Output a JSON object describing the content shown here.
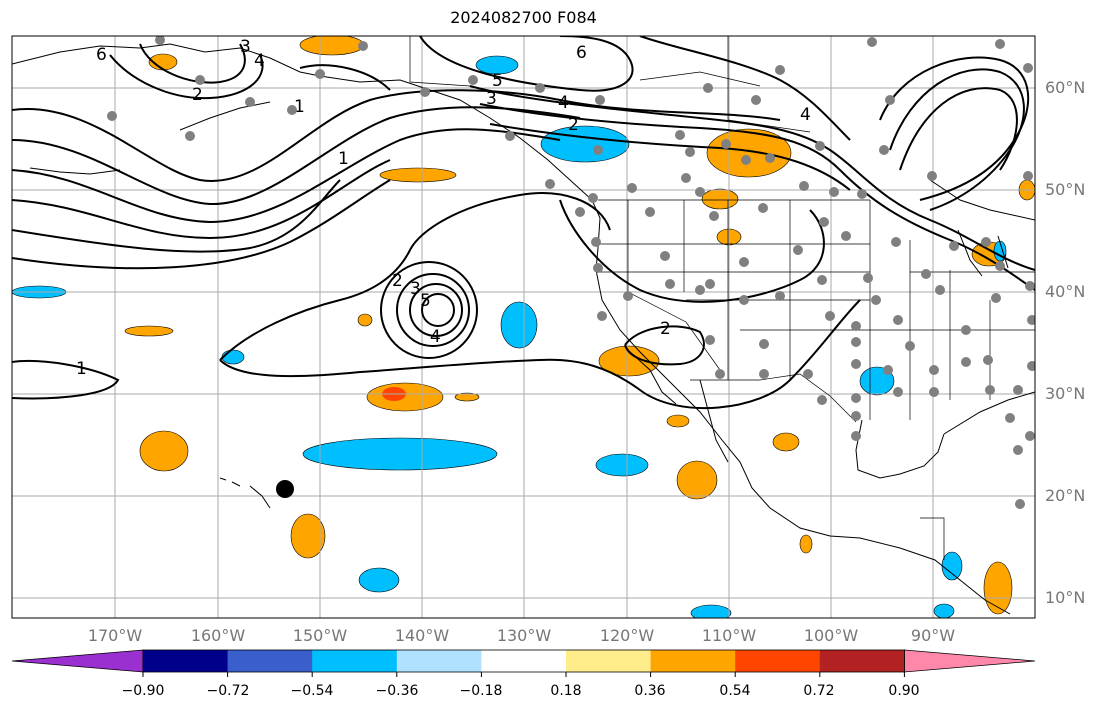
{
  "title": "2024082700 F084",
  "lat_labels": [
    "60°N",
    "50°N",
    "40°N",
    "30°N",
    "20°N",
    "10°N"
  ],
  "lon_labels": [
    "170°W",
    "160°W",
    "150°W",
    "140°W",
    "130°W",
    "120°W",
    "110°W",
    "100°W",
    "90°W"
  ],
  "colorbar": {
    "ticks": [
      "−0.90",
      "−0.72",
      "−0.54",
      "−0.36",
      "−0.18",
      "0.18",
      "0.36",
      "0.54",
      "0.72",
      "0.90"
    ],
    "colors": [
      "#9b30d0",
      "#00008b",
      "#3a5fcd",
      "#00bfff",
      "#b0e2ff",
      "#ffffff",
      "#ffec8b",
      "#ffa500",
      "#ff4500",
      "#b22222",
      "#ff88aa"
    ]
  },
  "contour_labels": [
    "6",
    "4",
    "3",
    "2",
    "1",
    "5",
    "4",
    "3",
    "2",
    "1",
    "6",
    "4",
    "2",
    "3",
    "4",
    "5",
    "2",
    "1"
  ],
  "colors": {
    "positive_fill": "#ffa500",
    "strong_positive_fill": "#ff4500",
    "negative_fill": "#00bfff",
    "contour": "#000000",
    "station": "#808080",
    "grid": "#a9a9a9"
  }
}
